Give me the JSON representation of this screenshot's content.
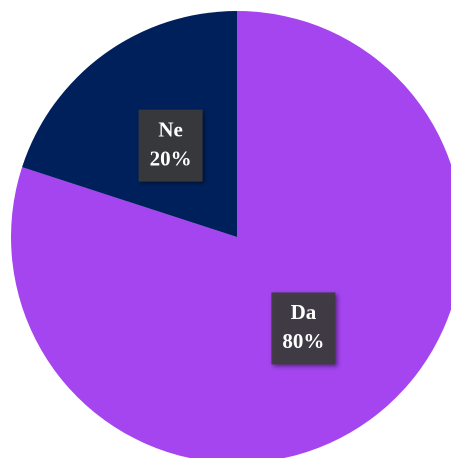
{
  "chart_data": {
    "type": "pie",
    "categories": [
      "Da",
      "Ne"
    ],
    "values": [
      80,
      20
    ],
    "value_labels": [
      "80%",
      "20%"
    ],
    "colors": [
      "#a445f0",
      "#00205b"
    ]
  }
}
